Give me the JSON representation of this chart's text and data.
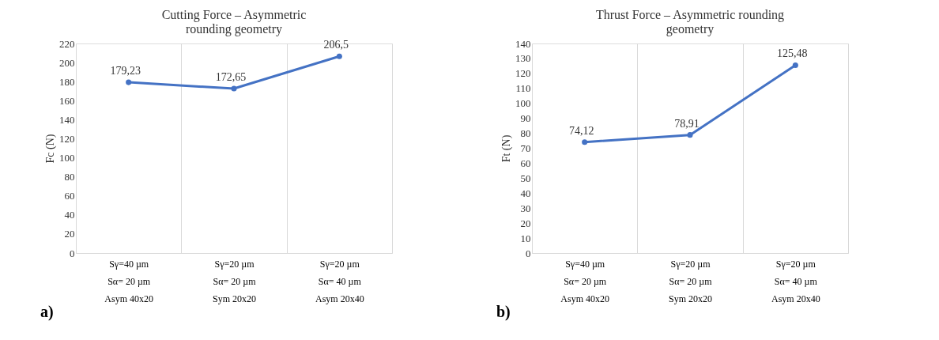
{
  "chart_data": [
    {
      "type": "line",
      "title": "Cutting Force – Asymmetric rounding geometry",
      "ylabel": "Fc (N)",
      "categories": [
        "Sγ=40 µm\nSα= 20 µm\nAsym 40x20",
        "Sγ=20 µm\nSα= 20 µm\nSym 20x20",
        "Sγ=20 µm\nSα= 40 µm\nAsym 20x40"
      ],
      "series": [
        {
          "color": "#4472c4",
          "values": [
            179.23,
            172.65,
            206.5
          ],
          "value_labels": [
            "179,23",
            "172,65",
            "206,5"
          ]
        }
      ],
      "ylim": [
        0,
        220
      ],
      "yticks": [
        0,
        20,
        40,
        60,
        80,
        100,
        120,
        140,
        160,
        180,
        200,
        220
      ],
      "grid": "x",
      "marker": "circle",
      "line_style": "solid",
      "annotations": [
        "a)"
      ]
    },
    {
      "type": "line",
      "title": "Thrust Force – Asymmetric rounding geometry",
      "ylabel": "Ft (N)",
      "categories": [
        "Sγ=40 µm\nSα= 20 µm\nAsym 40x20",
        "Sγ=20 µm\nSα= 20 µm\nSym 20x20",
        "Sγ=20 µm\nSα= 40 µm\nAsym 20x40"
      ],
      "series": [
        {
          "color": "#4472c4",
          "values": [
            74.12,
            78.91,
            125.48
          ],
          "value_labels": [
            "74,12",
            "78,91",
            "125,48"
          ]
        }
      ],
      "ylim": [
        0,
        140
      ],
      "yticks": [
        0,
        10,
        20,
        30,
        40,
        50,
        60,
        70,
        80,
        90,
        100,
        110,
        120,
        130,
        140
      ],
      "grid": "x",
      "marker": "circle",
      "line_style": "solid",
      "annotations": [
        "b)"
      ]
    }
  ]
}
